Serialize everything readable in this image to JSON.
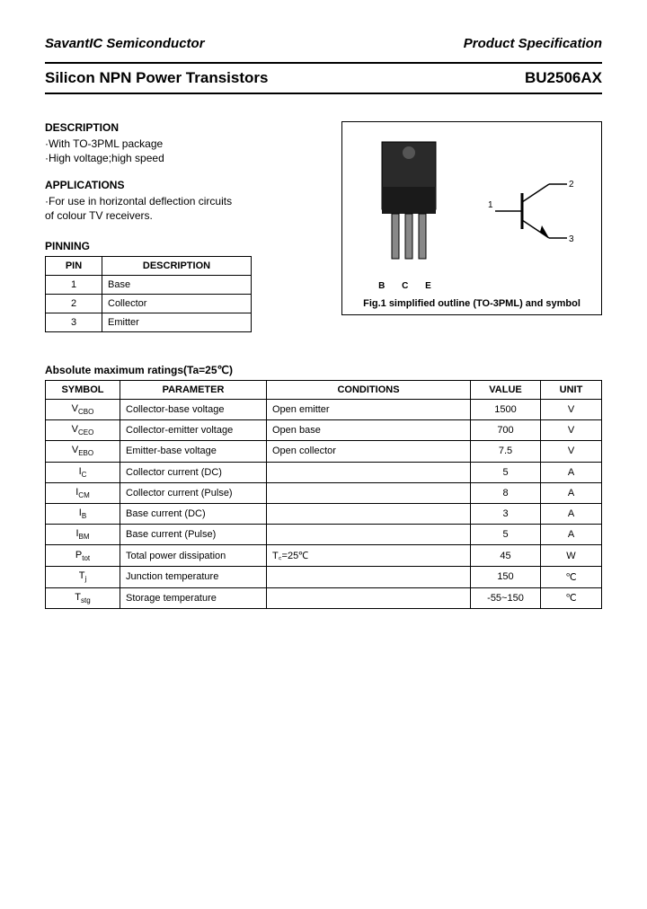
{
  "header": {
    "company": "SavantIC Semiconductor",
    "spec": "Product Specification"
  },
  "title": {
    "left": "Silicon NPN Power Transistors",
    "right": "BU2506AX"
  },
  "description": {
    "heading": "DESCRIPTION",
    "lines": [
      "·With TO-3PML package",
      "·High voltage;high speed"
    ]
  },
  "applications": {
    "heading": "APPLICATIONS",
    "lines": [
      "·For use in horizontal deflection circuits",
      "  of colour TV receivers."
    ]
  },
  "pinning": {
    "heading": "PINNING",
    "columns": [
      "PIN",
      "DESCRIPTION"
    ],
    "rows": [
      [
        "1",
        "Base"
      ],
      [
        "2",
        "Collector"
      ],
      [
        "3",
        "Emitter"
      ]
    ]
  },
  "figure": {
    "caption": "Fig.1 simplified outline (TO-3PML) and symbol",
    "pin_labels": "B  C  E",
    "sym_labels": {
      "n1": "1",
      "n2": "2",
      "n3": "3"
    }
  },
  "ratings": {
    "heading": "Absolute maximum ratings(Ta=25℃)",
    "columns": [
      "SYMBOL",
      "PARAMETER",
      "CONDITIONS",
      "VALUE",
      "UNIT"
    ],
    "rows": [
      {
        "sym": "V",
        "sub": "CBO",
        "param": "Collector-base voltage",
        "cond": "Open emitter",
        "val": "1500",
        "unit": "V"
      },
      {
        "sym": "V",
        "sub": "CEO",
        "param": "Collector-emitter voltage",
        "cond": "Open base",
        "val": "700",
        "unit": "V"
      },
      {
        "sym": "V",
        "sub": "EBO",
        "param": "Emitter-base voltage",
        "cond": "Open collector",
        "val": "7.5",
        "unit": "V"
      },
      {
        "sym": "I",
        "sub": "C",
        "param": "Collector current (DC)",
        "cond": "",
        "val": "5",
        "unit": "A"
      },
      {
        "sym": "I",
        "sub": "CM",
        "param": "Collector current (Pulse)",
        "cond": "",
        "val": "8",
        "unit": "A"
      },
      {
        "sym": "I",
        "sub": "B",
        "param": "Base current (DC)",
        "cond": "",
        "val": "3",
        "unit": "A"
      },
      {
        "sym": "I",
        "sub": "BM",
        "param": "Base current (Pulse)",
        "cond": "",
        "val": "5",
        "unit": "A"
      },
      {
        "sym": "P",
        "sub": "tot",
        "param": "Total power dissipation",
        "cond": "T꜀=25℃",
        "val": "45",
        "unit": "W"
      },
      {
        "sym": "T",
        "sub": "j",
        "param": "Junction temperature",
        "cond": "",
        "val": "150",
        "unit": "℃"
      },
      {
        "sym": "T",
        "sub": "stg",
        "param": "Storage temperature",
        "cond": "",
        "val": "-55~150",
        "unit": "℃"
      }
    ]
  }
}
